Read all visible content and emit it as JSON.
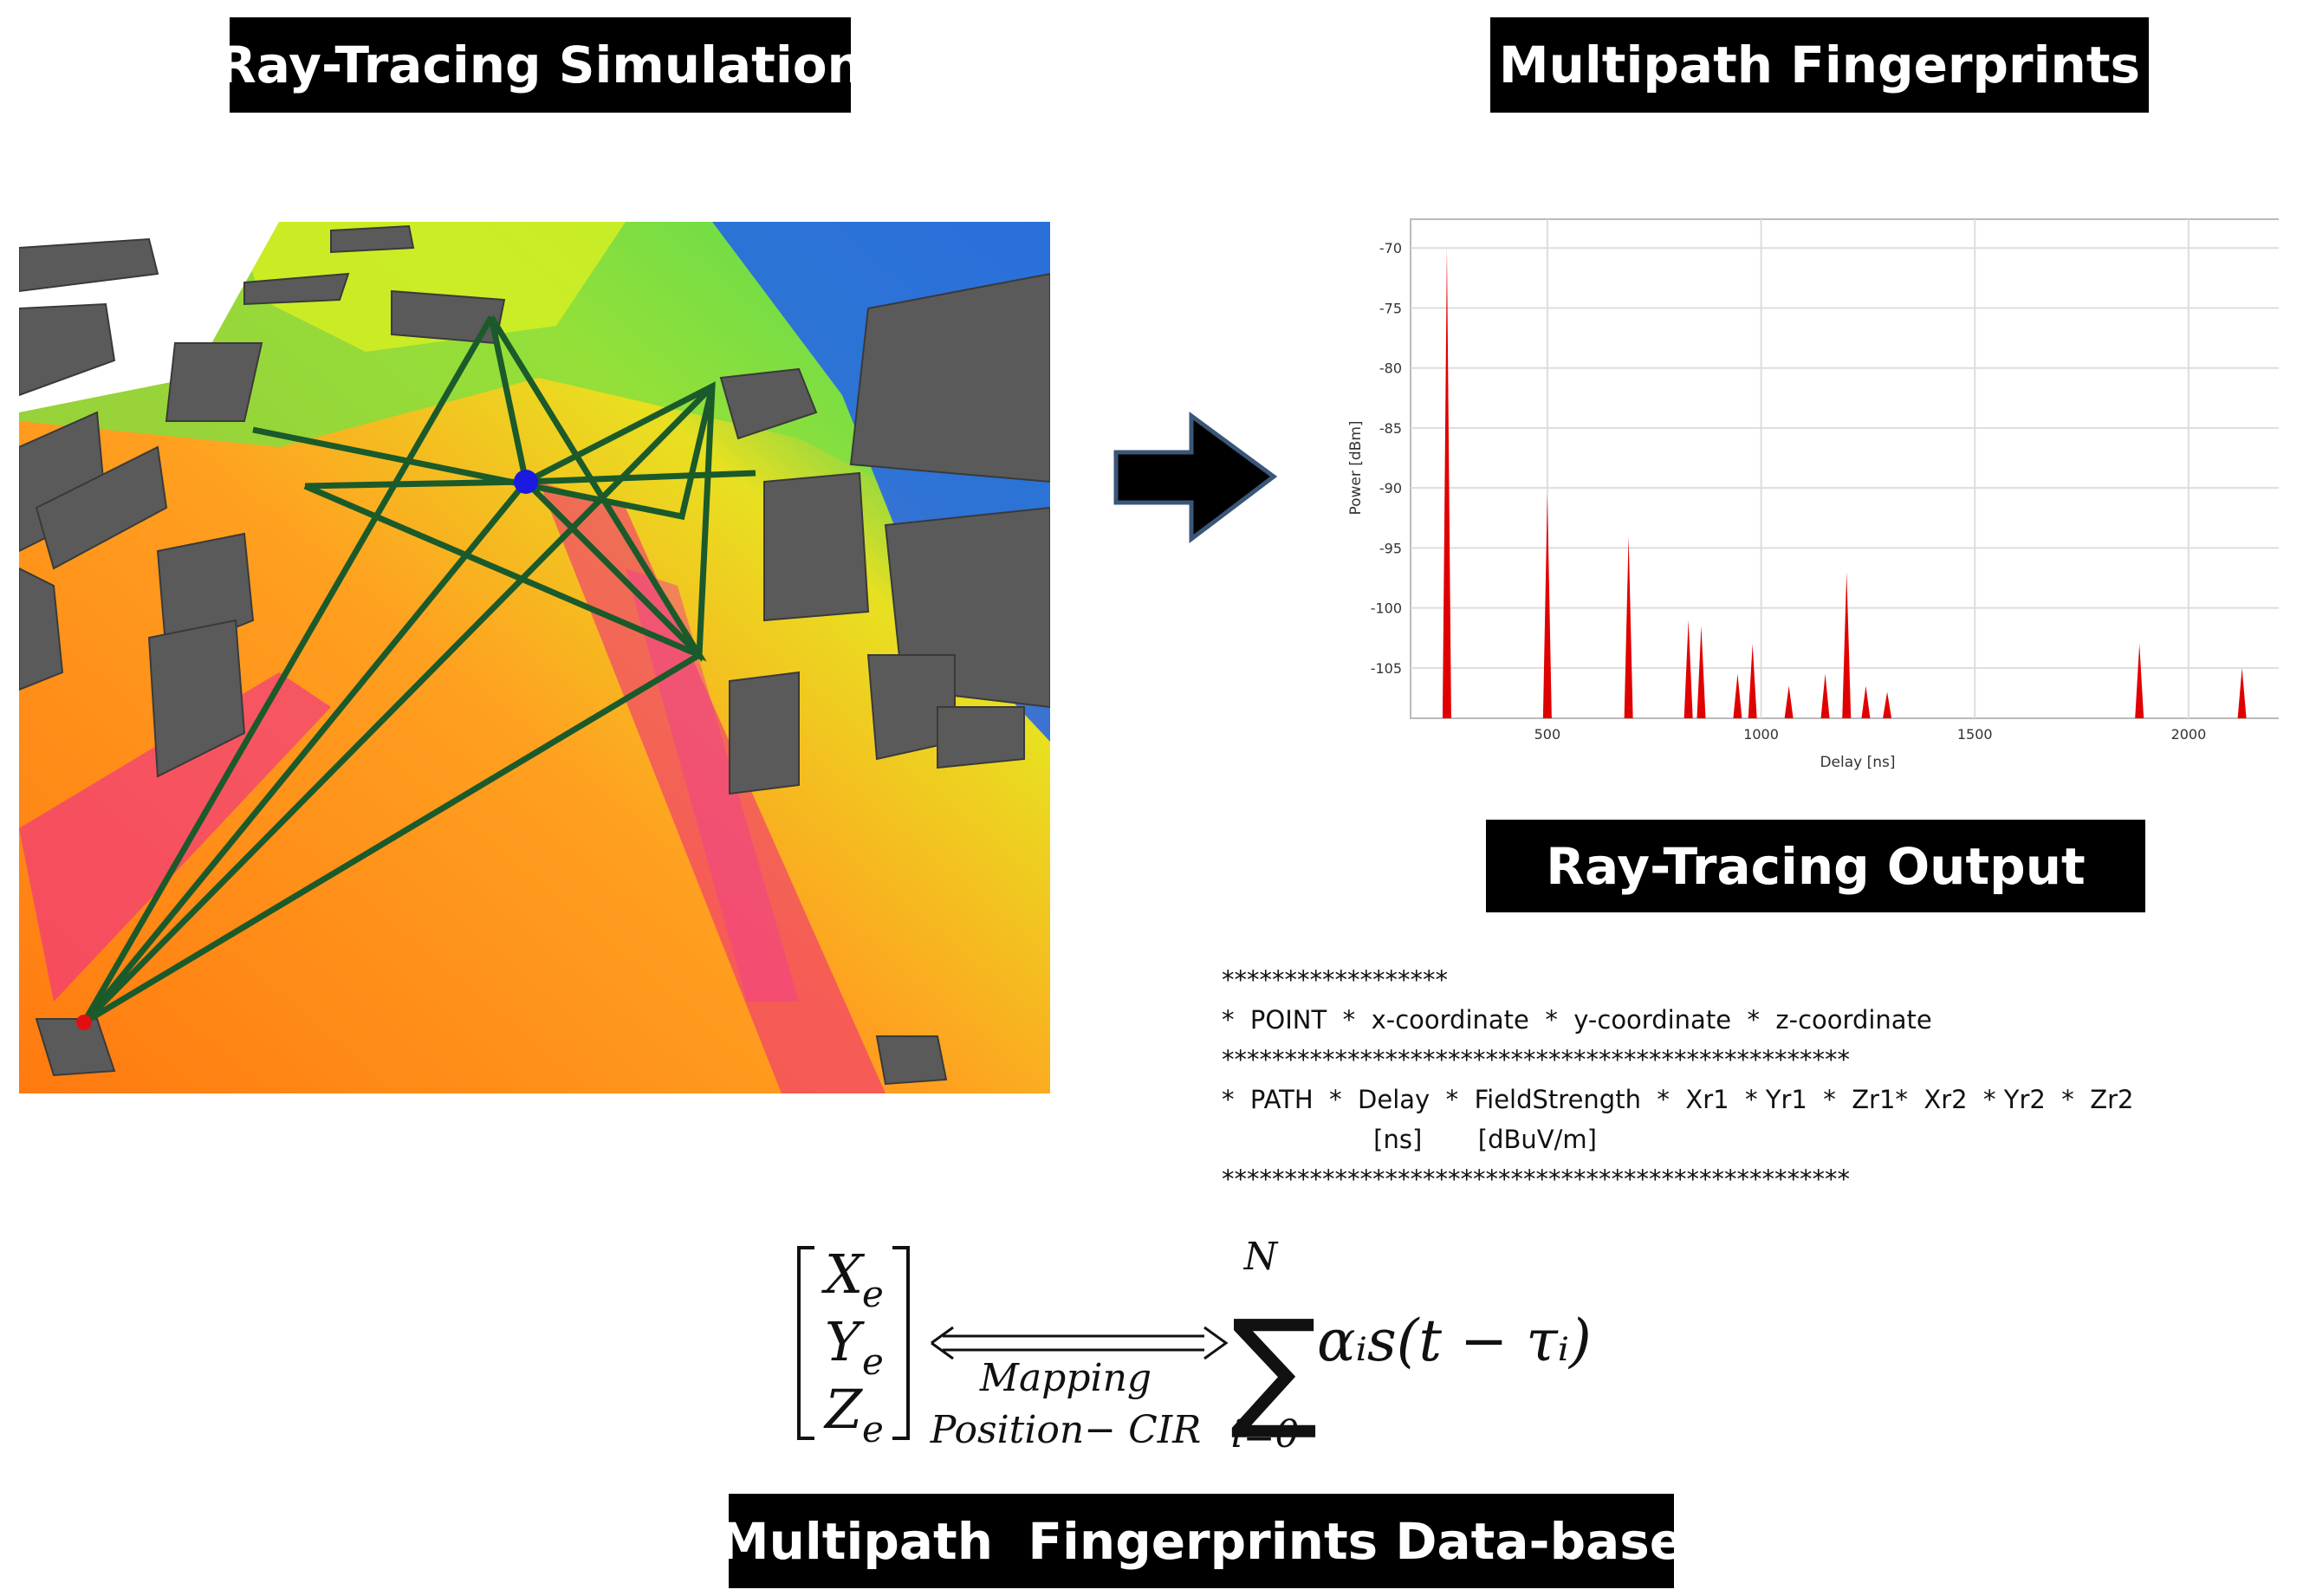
{
  "headings": {
    "simulation": "Ray-Tracing Simulation",
    "fingerprints": "Multipath Fingerprints",
    "output": "Ray-Tracing Output",
    "database": "Multipath  Fingerprints Data-base"
  },
  "chart_data": {
    "type": "spike",
    "x_label": "Delay [ns]",
    "y_label": "Power [dBm]",
    "x": [
      265,
      500,
      690,
      830,
      860,
      945,
      980,
      1065,
      1150,
      1200,
      1245,
      1295,
      1885,
      2125
    ],
    "values": [
      -70,
      -90.5,
      -94,
      -101,
      -101.5,
      -105.5,
      -103,
      -106.5,
      -105.5,
      -97,
      -106.5,
      -107,
      -103,
      -105
    ],
    "color": "#e00000",
    "xlim": [
      180,
      2215
    ],
    "ylim": [
      -109.2,
      -67.6
    ],
    "xticks": [
      500,
      1000,
      1500,
      2000
    ],
    "yticks": [
      -70,
      -75,
      -80,
      -85,
      -90,
      -95,
      -100,
      -105
    ],
    "grid": true
  },
  "output_lines": [
    "******************",
    "*  POINT  *  x-coordinate  *  y-coordinate  *  z-coordinate",
    "**************************************************",
    "*  PATH  *  Delay  *  FieldStrength  *  Xr1  * Yr1  *  Zr1*  Xr2  * Yr2  *  Zr2",
    "                   [ns]       [dBuV/m]",
    "**************************************************"
  ],
  "formula": {
    "vector": [
      {
        "main": "X",
        "sub": "e"
      },
      {
        "main": "Y",
        "sub": "e"
      },
      {
        "main": "Z",
        "sub": "e"
      }
    ],
    "mapping_top": "Mapping",
    "mapping_bottom": "Position− CIR",
    "sum_upper": "N",
    "sum_lower": "i=0",
    "expression": "αᵢs(t − τᵢ)"
  }
}
